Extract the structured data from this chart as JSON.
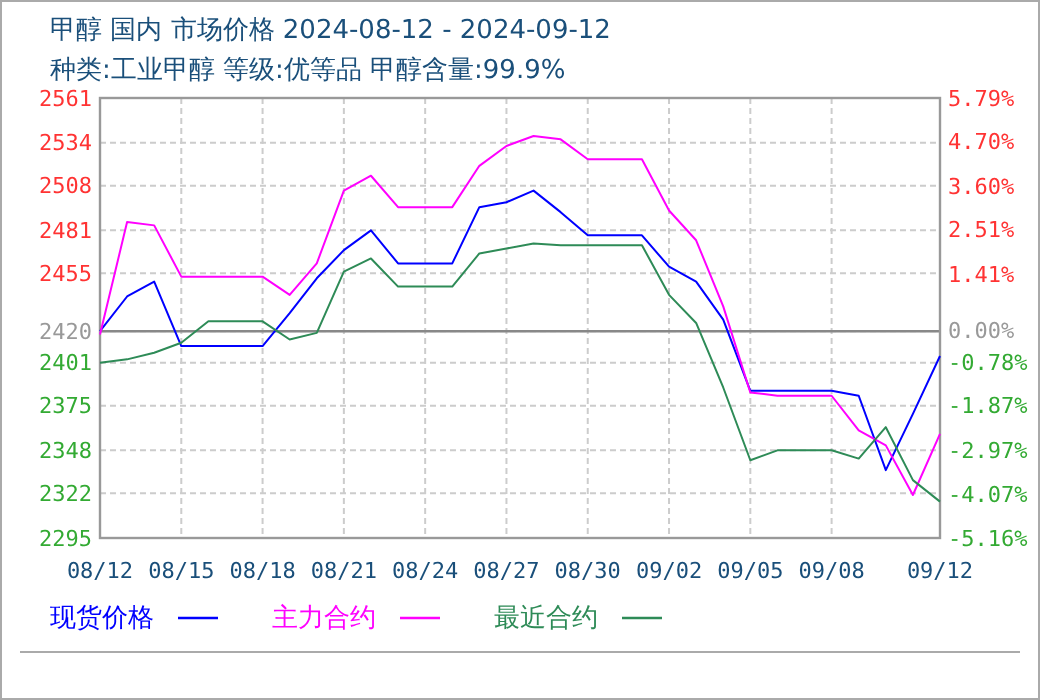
{
  "chart_data": {
    "type": "line",
    "title": "甲醇 国内 市场价格 2024-08-12 - 2024-09-12",
    "subtitle": "种类:工业甲醇 等级:优等品 甲醇含量:99.9%",
    "x": [
      "2024-08-12",
      "2024-08-13",
      "2024-08-14",
      "2024-08-15",
      "2024-08-16",
      "2024-08-17",
      "2024-08-18",
      "2024-08-19",
      "2024-08-20",
      "2024-08-21",
      "2024-08-22",
      "2024-08-23",
      "2024-08-24",
      "2024-08-25",
      "2024-08-26",
      "2024-08-27",
      "2024-08-28",
      "2024-08-29",
      "2024-08-30",
      "2024-08-31",
      "2024-09-01",
      "2024-09-02",
      "2024-09-03",
      "2024-09-04",
      "2024-09-05",
      "2024-09-06",
      "2024-09-07",
      "2024-09-08",
      "2024-09-09",
      "2024-09-10",
      "2024-09-11",
      "2024-09-12"
    ],
    "series": [
      {
        "name": "现货价格",
        "color": "#0000ff",
        "values": [
          2420,
          2441,
          2450,
          2411,
          2411,
          2411,
          2411,
          2431,
          2452,
          2469,
          2481,
          2461,
          2461,
          2461,
          2495,
          2498,
          2505,
          2492,
          2478,
          2478,
          2478,
          2459,
          2450,
          2427,
          2384,
          2384,
          2384,
          2384,
          2381,
          2336,
          2370,
          2405
        ]
      },
      {
        "name": "主力合约",
        "color": "#ff00ff",
        "values": [
          2418,
          2486,
          2484,
          2453,
          2453,
          2453,
          2453,
          2442,
          2461,
          2505,
          2514,
          2495,
          2495,
          2495,
          2520,
          2532,
          2538,
          2536,
          2524,
          2524,
          2524,
          2493,
          2475,
          2435,
          2383,
          2381,
          2381,
          2381,
          2360,
          2351,
          2321,
          2358
        ]
      },
      {
        "name": "最近合约",
        "color": "#2e8b57",
        "values": [
          2401,
          2403,
          2407,
          2413,
          2426,
          2426,
          2426,
          2415,
          2419,
          2456,
          2464,
          2447,
          2447,
          2447,
          2467,
          2470,
          2473,
          2472,
          2472,
          2472,
          2472,
          2442,
          2425,
          2386,
          2342,
          2348,
          2348,
          2348,
          2343,
          2362,
          2330,
          2317
        ]
      }
    ],
    "xlim": [
      "2024-08-12",
      "2024-09-12"
    ],
    "xticks": [
      {
        "value": "2024-08-12",
        "label": "08/12"
      },
      {
        "value": "2024-08-15",
        "label": "08/15"
      },
      {
        "value": "2024-08-18",
        "label": "08/18"
      },
      {
        "value": "2024-08-21",
        "label": "08/21"
      },
      {
        "value": "2024-08-24",
        "label": "08/24"
      },
      {
        "value": "2024-08-27",
        "label": "08/27"
      },
      {
        "value": "2024-08-30",
        "label": "08/30"
      },
      {
        "value": "2024-09-02",
        "label": "09/02"
      },
      {
        "value": "2024-09-05",
        "label": "09/05"
      },
      {
        "value": "2024-09-08",
        "label": "09/08"
      },
      {
        "value": "2024-09-12",
        "label": "09/12"
      }
    ],
    "ylim": [
      2295,
      2561
    ],
    "yticks": [
      2295,
      2322,
      2348,
      2375,
      2401,
      2420,
      2455,
      2481,
      2508,
      2534,
      2561
    ],
    "y2lim": [
      -5.16,
      5.79
    ],
    "y2ticks": [
      {
        "value": -5.16,
        "label": "-5.16%"
      },
      {
        "value": -4.07,
        "label": "-4.07%"
      },
      {
        "value": -2.97,
        "label": "-2.97%"
      },
      {
        "value": -1.87,
        "label": "-1.87%"
      },
      {
        "value": -0.78,
        "label": "-0.78%"
      },
      {
        "value": 0,
        "label": "0.00%"
      },
      {
        "value": 1.41,
        "label": "1.41%"
      },
      {
        "value": 2.51,
        "label": "2.51%"
      },
      {
        "value": 3.6,
        "label": "3.60%"
      },
      {
        "value": 4.7,
        "label": "4.70%"
      },
      {
        "value": 5.79,
        "label": "5.79%"
      }
    ],
    "ref_lines": [
      {
        "axis": "y",
        "value": 2420,
        "color": "#888888"
      }
    ],
    "grid": true,
    "legend": "bottom",
    "line_style": "solid",
    "marker": "none"
  }
}
